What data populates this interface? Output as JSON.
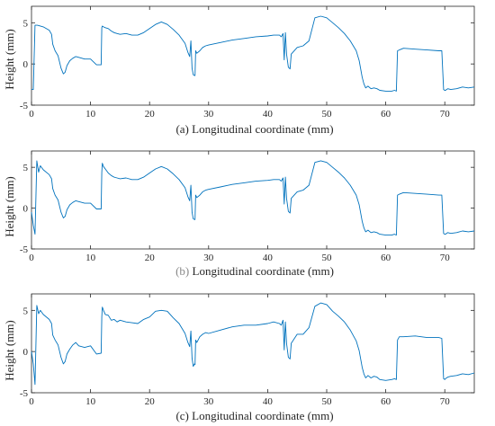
{
  "chart_data": [
    {
      "type": "line",
      "caption": "(a) Longitudinal coordinate (mm)",
      "ylabel": "Height (mm)",
      "xlim": [
        0,
        75
      ],
      "ylim": [
        -5,
        7
      ],
      "xticks": [
        0,
        10,
        20,
        30,
        40,
        50,
        60,
        70
      ],
      "yticks": [
        -5,
        0,
        5
      ],
      "grid": false,
      "color": "#0072BD",
      "series": [
        {
          "x": [
            0,
            0.3,
            0.6,
            1,
            2,
            3,
            3.4,
            3.6,
            4,
            4.5,
            5,
            5.4,
            5.7,
            6,
            6.5,
            7,
            7.5,
            8,
            9,
            10,
            11,
            11.8,
            11.9,
            12,
            12.2,
            12.5,
            13,
            13.5,
            14,
            14.5,
            15,
            16,
            17,
            18,
            19,
            20,
            21,
            22,
            23,
            24,
            25,
            26,
            26.5,
            26.8,
            27,
            27.2,
            27.4,
            27.6,
            27.7,
            27.8,
            28,
            28.5,
            29,
            29.5,
            30,
            32,
            34,
            36,
            38,
            40,
            41,
            42,
            42.3,
            42.6,
            42.8,
            43,
            43.2,
            43.5,
            43.8,
            44,
            45,
            46,
            47,
            48,
            49,
            50,
            51,
            52,
            53,
            54,
            55,
            55.5,
            56,
            56.3,
            56.6,
            57,
            57.5,
            58,
            58.5,
            59,
            60,
            61,
            61.5,
            61.8,
            62,
            62.3,
            63,
            65,
            67,
            69,
            69.5,
            69.8,
            70,
            70.1,
            70.5,
            71,
            72,
            73,
            74,
            75
          ],
          "y": [
            -3.1,
            -3.1,
            4.7,
            4.7,
            4.5,
            4.1,
            3.6,
            2.4,
            1.6,
            1.0,
            -0.5,
            -1.2,
            -1.0,
            -0.2,
            0.4,
            0.7,
            0.9,
            0.8,
            0.6,
            0.6,
            -0.1,
            -0.1,
            4.4,
            4.6,
            4.5,
            4.4,
            4.3,
            4.0,
            3.8,
            3.7,
            3.6,
            3.7,
            3.5,
            3.5,
            3.8,
            4.3,
            4.8,
            5.1,
            4.8,
            4.2,
            3.5,
            2.5,
            1.4,
            0.9,
            2.8,
            -0.5,
            -1.3,
            -1.4,
            -1.4,
            1.6,
            1.3,
            1.6,
            2.0,
            2.2,
            2.3,
            2.6,
            2.9,
            3.1,
            3.3,
            3.4,
            3.5,
            3.5,
            3.3,
            3.7,
            0.5,
            3.8,
            1.2,
            -0.4,
            -0.6,
            1.2,
            2.0,
            2.2,
            2.8,
            5.6,
            5.8,
            5.6,
            5.0,
            4.4,
            3.7,
            2.8,
            1.6,
            0.4,
            -1.6,
            -2.4,
            -2.9,
            -2.7,
            -3.0,
            -2.9,
            -3.0,
            -3.2,
            -3.3,
            -3.3,
            -3.2,
            -3.3,
            1.6,
            1.7,
            1.9,
            1.8,
            1.7,
            1.6,
            1.6,
            -3.1,
            -3.2,
            -3.2,
            -3.0,
            -3.1,
            -3.0,
            -2.8,
            -2.9,
            -2.8
          ]
        }
      ]
    },
    {
      "type": "line",
      "caption": "(b) Longitudinal coordinate (mm)",
      "caption_prefix": "(b)",
      "caption_rest": " Longitudinal coordinate (mm)",
      "ylabel": "Height (mm)",
      "xlim": [
        0,
        75
      ],
      "ylim": [
        -5,
        7
      ],
      "xticks": [
        0,
        10,
        20,
        30,
        40,
        50,
        60,
        70
      ],
      "yticks": [
        -5,
        0,
        5
      ],
      "grid": false,
      "color": "#0072BD",
      "series": [
        {
          "x": [
            0,
            0.3,
            0.6,
            0.9,
            1.2,
            1.5,
            2,
            3,
            3.4,
            3.6,
            4,
            4.5,
            5,
            5.4,
            5.7,
            6,
            6.5,
            7,
            7.5,
            8,
            9,
            10,
            11,
            11.8,
            11.9,
            12,
            12.2,
            12.5,
            13,
            13.5,
            14,
            14.5,
            15,
            16,
            17,
            18,
            19,
            20,
            21,
            22,
            23,
            24,
            25,
            26,
            26.5,
            26.8,
            27,
            27.2,
            27.4,
            27.6,
            27.7,
            27.8,
            28,
            28.5,
            29,
            29.5,
            30,
            32,
            34,
            36,
            38,
            40,
            41,
            42,
            42.3,
            42.6,
            42.8,
            43,
            43.2,
            43.5,
            43.8,
            44,
            45,
            46,
            47,
            48,
            49,
            50,
            51,
            52,
            53,
            54,
            55,
            55.5,
            56,
            56.3,
            56.6,
            57,
            57.5,
            58,
            58.5,
            59,
            60,
            61,
            61.5,
            61.8,
            62,
            62.3,
            63,
            65,
            67,
            69,
            69.5,
            69.8,
            70,
            70.1,
            70.5,
            71,
            72,
            73,
            74,
            75
          ],
          "y": [
            -0.5,
            -2.1,
            -3.2,
            5.8,
            4.4,
            5.2,
            4.7,
            4.1,
            3.6,
            2.4,
            1.6,
            1.0,
            -0.5,
            -1.2,
            -1.0,
            -0.2,
            0.4,
            0.7,
            0.9,
            0.8,
            0.6,
            0.6,
            -0.1,
            -0.1,
            4.4,
            5.5,
            5.1,
            4.8,
            4.3,
            4.0,
            3.8,
            3.7,
            3.6,
            3.7,
            3.5,
            3.5,
            3.8,
            4.3,
            4.8,
            5.1,
            4.8,
            4.2,
            3.5,
            2.5,
            1.4,
            0.9,
            2.8,
            -0.5,
            -1.3,
            -1.4,
            -1.4,
            1.6,
            1.3,
            1.6,
            2.0,
            2.2,
            2.3,
            2.6,
            2.9,
            3.1,
            3.3,
            3.4,
            3.5,
            3.5,
            3.3,
            3.7,
            0.5,
            3.8,
            1.2,
            -0.4,
            -0.6,
            1.2,
            2.0,
            2.2,
            2.8,
            5.6,
            5.8,
            5.6,
            5.0,
            4.4,
            3.7,
            2.8,
            1.6,
            0.4,
            -1.6,
            -2.4,
            -2.9,
            -2.7,
            -3.0,
            -2.9,
            -3.0,
            -3.2,
            -3.3,
            -3.3,
            -3.2,
            -3.3,
            1.6,
            1.7,
            1.9,
            1.8,
            1.7,
            1.6,
            1.6,
            -3.1,
            -3.2,
            -3.2,
            -3.0,
            -3.1,
            -3.0,
            -2.8,
            -2.9,
            -2.8
          ]
        }
      ]
    },
    {
      "type": "line",
      "caption": "(c) Longitudinal coordinate (mm)",
      "ylabel": "Height (mm)",
      "xlim": [
        0,
        75
      ],
      "ylim": [
        -5,
        7
      ],
      "xticks": [
        0,
        10,
        20,
        30,
        40,
        50,
        60,
        70
      ],
      "yticks": [
        -5,
        0,
        5
      ],
      "grid": false,
      "color": "#0072BD",
      "series": [
        {
          "x": [
            0,
            0.3,
            0.6,
            0.9,
            1.2,
            1.5,
            2,
            3,
            3.4,
            3.6,
            4,
            4.5,
            5,
            5.4,
            5.7,
            6,
            6.5,
            7,
            7.5,
            8,
            9,
            10,
            11,
            11.8,
            11.9,
            12,
            12.2,
            12.5,
            13,
            13.5,
            14,
            14.5,
            15,
            16,
            17,
            18,
            19,
            20,
            21,
            22,
            23,
            24,
            25,
            26,
            26.5,
            26.8,
            27,
            27.2,
            27.4,
            27.6,
            27.7,
            27.8,
            28,
            28.5,
            29,
            29.5,
            30,
            32,
            34,
            36,
            38,
            40,
            41,
            42,
            42.3,
            42.6,
            42.8,
            43,
            43.2,
            43.5,
            43.8,
            44,
            45,
            46,
            47,
            48,
            49,
            50,
            51,
            52,
            53,
            54,
            55,
            55.5,
            56,
            56.3,
            56.6,
            57,
            57.5,
            58,
            58.5,
            59,
            60,
            61,
            61.5,
            61.8,
            62,
            62.3,
            63,
            65,
            67,
            69,
            69.5,
            69.8,
            70,
            70.1,
            70.5,
            71,
            72,
            73,
            74,
            75
          ],
          "y": [
            0.0,
            -1.5,
            -4.0,
            5.6,
            4.6,
            5.0,
            4.5,
            3.9,
            3.4,
            2.0,
            1.4,
            0.8,
            -0.7,
            -1.5,
            -1.2,
            -0.3,
            0.3,
            0.8,
            1.1,
            0.7,
            0.5,
            0.7,
            -0.3,
            -0.2,
            4.2,
            5.4,
            5.0,
            4.5,
            4.4,
            3.8,
            3.9,
            3.6,
            3.8,
            3.6,
            3.5,
            3.4,
            3.9,
            4.2,
            4.9,
            5.0,
            4.9,
            4.1,
            3.4,
            2.2,
            1.1,
            0.6,
            2.5,
            -0.8,
            -1.8,
            -1.5,
            -1.6,
            1.4,
            1.1,
            1.8,
            2.1,
            2.3,
            2.2,
            2.6,
            3.0,
            3.2,
            3.2,
            3.4,
            3.6,
            3.4,
            3.2,
            3.8,
            0.2,
            3.6,
            1.0,
            -0.7,
            -0.9,
            1.0,
            2.1,
            2.1,
            2.9,
            5.5,
            5.9,
            5.7,
            4.9,
            4.3,
            3.6,
            2.6,
            1.3,
            0.1,
            -1.9,
            -2.7,
            -3.2,
            -2.9,
            -3.2,
            -3.0,
            -3.1,
            -3.4,
            -3.5,
            -3.4,
            -3.3,
            -3.4,
            1.4,
            1.8,
            1.8,
            1.9,
            1.7,
            1.7,
            1.6,
            -3.3,
            -3.4,
            -3.3,
            -3.1,
            -3.0,
            -2.9,
            -2.7,
            -2.8,
            -2.6
          ]
        }
      ]
    }
  ]
}
